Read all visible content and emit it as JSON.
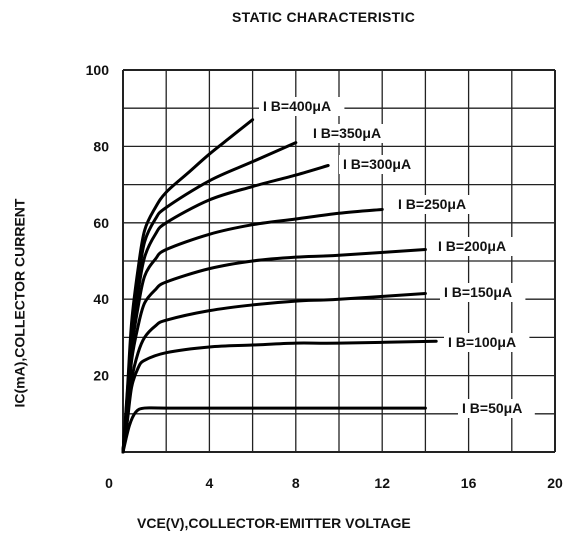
{
  "chart_data": {
    "type": "line",
    "title": "STATIC CHARACTERISTIC",
    "xlabel": "VCE(V),COLLECTOR-EMITTER VOLTAGE",
    "ylabel": "IC(mA),COLLECTOR CURRENT",
    "xlim": [
      0,
      20
    ],
    "ylim": [
      0,
      100
    ],
    "x_ticks": [
      "0",
      "4",
      "8",
      "12",
      "16",
      "20"
    ],
    "y_ticks": [
      "20",
      "40",
      "60",
      "80",
      "100"
    ],
    "grid": true,
    "series": [
      {
        "name": "IB=50μA",
        "label": "I B=50μA",
        "x": [
          0,
          0.3,
          0.6,
          1.0,
          2,
          6,
          10,
          14
        ],
        "y": [
          0,
          7,
          10.5,
          11.5,
          11.5,
          11.5,
          11.5,
          11.5
        ]
      },
      {
        "name": "IB=100μA",
        "label": "I B=100μA",
        "x": [
          0,
          0.2,
          0.4,
          0.7,
          1.0,
          2,
          4,
          6,
          8,
          10,
          14.5
        ],
        "y": [
          0,
          8,
          17,
          22,
          24,
          26,
          27.5,
          28,
          28.5,
          28.5,
          29
        ]
      },
      {
        "name": "IB=150μA",
        "label": "I B=150μA",
        "x": [
          0,
          0.2,
          0.4,
          0.7,
          1.0,
          1.5,
          2,
          4,
          6,
          8,
          10,
          14
        ],
        "y": [
          0,
          9,
          19,
          26,
          30,
          33,
          34.5,
          37,
          38.5,
          39.5,
          40,
          41.5
        ]
      },
      {
        "name": "IB=200μA",
        "label": "I B=200μA",
        "x": [
          0,
          0.2,
          0.4,
          0.7,
          1.0,
          1.5,
          2,
          4,
          6,
          8,
          10,
          14
        ],
        "y": [
          0,
          11,
          24,
          33,
          39,
          42.5,
          44.5,
          48,
          50,
          51,
          51.5,
          53
        ]
      },
      {
        "name": "IB=250μA",
        "label": "I B=250μA",
        "x": [
          0,
          0.2,
          0.4,
          0.7,
          1.0,
          1.5,
          2,
          4,
          6,
          8,
          10,
          12
        ],
        "y": [
          0,
          13,
          27,
          38,
          46,
          50.5,
          53,
          57,
          59.5,
          61,
          62.5,
          63.5
        ]
      },
      {
        "name": "IB=300μA",
        "label": "I B=300μA",
        "x": [
          0,
          0.2,
          0.4,
          0.7,
          1.0,
          1.5,
          2,
          4,
          6,
          8,
          9.5
        ],
        "y": [
          0,
          14,
          30,
          42,
          51,
          57,
          60,
          66,
          69.5,
          72.5,
          75
        ]
      },
      {
        "name": "IB=350μA",
        "label": "I B=350μA",
        "x": [
          0,
          0.2,
          0.4,
          0.7,
          1.0,
          1.5,
          2,
          4,
          6,
          8
        ],
        "y": [
          0,
          15,
          32,
          45,
          55,
          61,
          64,
          71,
          76,
          81
        ]
      },
      {
        "name": "IB=400μA",
        "label": "I B=400μA",
        "x": [
          0,
          0.2,
          0.4,
          0.7,
          1.0,
          1.5,
          2,
          3,
          4,
          5,
          6
        ],
        "y": [
          0,
          16,
          34,
          48,
          58,
          64,
          68,
          73,
          78,
          82.5,
          87
        ]
      }
    ]
  }
}
